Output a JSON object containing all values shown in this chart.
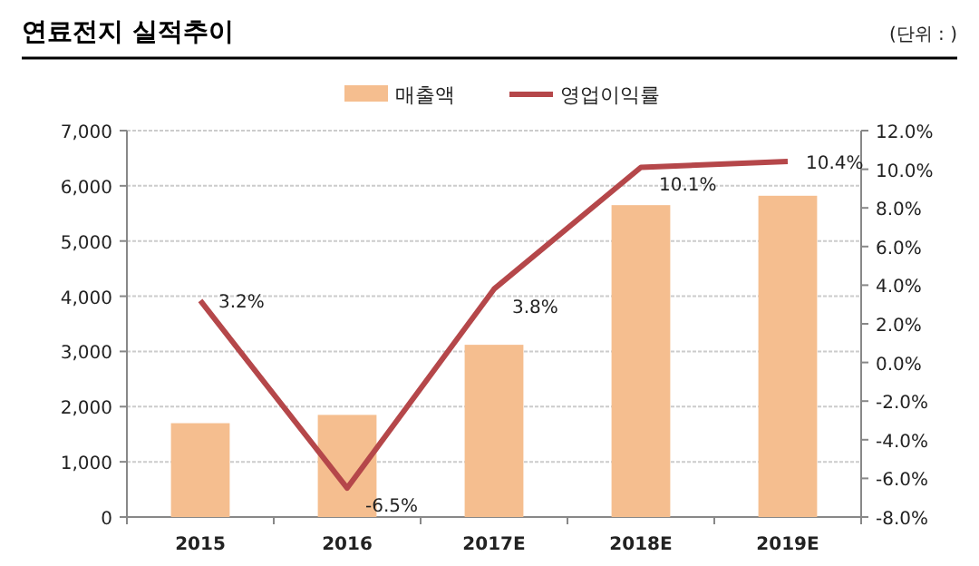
{
  "chart_data": {
    "type": "bar",
    "title": "연료전지 실적추이",
    "annotations": [
      "(단위 : )"
    ],
    "categories": [
      "2015",
      "2016",
      "2017E",
      "2018E",
      "2019E"
    ],
    "series": [
      {
        "name": "매출액",
        "color": "#f5be8f",
        "values": [
          1700,
          1850,
          3120,
          5650,
          5820
        ]
      },
      {
        "name": "영업이익률",
        "type": "line",
        "axis": "y2",
        "color": "#b5474a",
        "values": [
          3.2,
          -6.5,
          3.8,
          10.1,
          10.4
        ],
        "value_labels": [
          "3.2%",
          "-6.5%",
          "3.8%",
          "10.1%",
          "10.4%"
        ]
      }
    ],
    "ylim": [
      0,
      7000
    ],
    "yticks": [
      {
        "value": 0,
        "label": "0"
      },
      {
        "value": 1000,
        "label": "1,000"
      },
      {
        "value": 2000,
        "label": "2,000"
      },
      {
        "value": 3000,
        "label": "3,000"
      },
      {
        "value": 4000,
        "label": "4,000"
      },
      {
        "value": 5000,
        "label": "5,000"
      },
      {
        "value": 6000,
        "label": "6,000"
      },
      {
        "value": 7000,
        "label": "7,000"
      }
    ],
    "y2lim": [
      -8,
      12
    ],
    "y2ticks": [
      {
        "value": -8,
        "label": "-8.0%"
      },
      {
        "value": -6,
        "label": "-6.0%"
      },
      {
        "value": -4,
        "label": "-4.0%"
      },
      {
        "value": -2,
        "label": "-2.0%"
      },
      {
        "value": 0,
        "label": "0.0%"
      },
      {
        "value": 2,
        "label": "2.0%"
      },
      {
        "value": 4,
        "label": "4.0%"
      },
      {
        "value": 6,
        "label": "6.0%"
      },
      {
        "value": 8,
        "label": "8.0%"
      },
      {
        "value": 10,
        "label": "10.0%"
      },
      {
        "value": 12,
        "label": "12.0%"
      }
    ],
    "grid": "y",
    "legend": "top",
    "marker": "none",
    "line_style": "solid"
  }
}
